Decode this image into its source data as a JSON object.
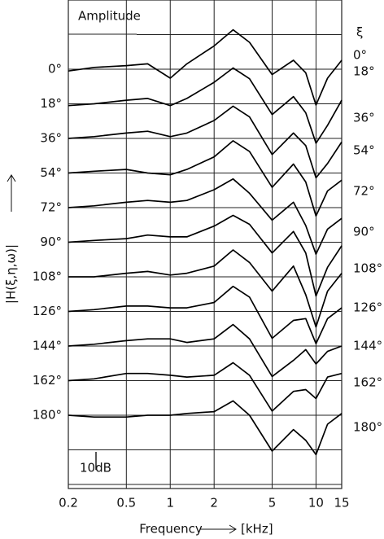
{
  "chart_data": {
    "type": "line",
    "title": "Amplitude",
    "x_label": "Frequency",
    "x_unit": "[kHz]",
    "y_label": "|H(ξ,η,ω)|",
    "series_label": "ξ",
    "x_log": true,
    "grid": true,
    "color": "#000000",
    "xlim": [
      0.2,
      15
    ],
    "xticks": [
      0.2,
      0.5,
      1,
      2,
      5,
      10,
      15
    ],
    "scale_bar": {
      "value": 10,
      "label": "10dB"
    },
    "x": [
      0.2,
      0.3,
      0.5,
      0.7,
      1,
      1.3,
      2,
      2.7,
      3.5,
      5,
      7,
      8.5,
      10,
      12,
      15
    ],
    "series": [
      {
        "name": "0°",
        "values": [
          -1,
          1,
          2,
          3,
          -5,
          3,
          13,
          22,
          15,
          -3,
          5,
          -2,
          -20,
          -5,
          5
        ]
      },
      {
        "name": "18°",
        "values": [
          -1,
          0,
          2,
          3,
          -1,
          3,
          12,
          20,
          14,
          -6,
          4,
          -5,
          -22,
          -12,
          2
        ]
      },
      {
        "name": "36°",
        "values": [
          0,
          1,
          3,
          4,
          1,
          3,
          10,
          18,
          12,
          -9,
          3,
          -4,
          -22,
          -14,
          -2
        ]
      },
      {
        "name": "54°",
        "values": [
          0,
          1,
          2,
          0,
          -1,
          2,
          9,
          18,
          12,
          -8,
          5,
          -5,
          -24,
          -10,
          -4
        ]
      },
      {
        "name": "72°",
        "values": [
          0,
          1,
          3,
          4,
          3,
          4,
          10,
          16,
          8,
          -7,
          3,
          -10,
          -26,
          -12,
          -6
        ]
      },
      {
        "name": "90°",
        "values": [
          0,
          1,
          2,
          4,
          3,
          3,
          9,
          15,
          10,
          -6,
          6,
          -6,
          -30,
          -14,
          -2
        ]
      },
      {
        "name": "108°",
        "values": [
          0,
          0,
          2,
          3,
          1,
          2,
          6,
          15,
          8,
          -8,
          6,
          -10,
          -28,
          -8,
          2
        ]
      },
      {
        "name": "126°",
        "values": [
          0,
          1,
          3,
          3,
          2,
          2,
          5,
          14,
          8,
          -15,
          -5,
          -4,
          -18,
          -4,
          2
        ]
      },
      {
        "name": "144°",
        "values": [
          0,
          1,
          3,
          4,
          4,
          2,
          4,
          12,
          4,
          -17,
          -8,
          -2,
          -10,
          -3,
          0
        ]
      },
      {
        "name": "162°",
        "values": [
          0,
          1,
          4,
          4,
          3,
          2,
          3,
          10,
          3,
          -17,
          -6,
          -5,
          -10,
          2,
          4
        ]
      },
      {
        "name": "180°",
        "values": [
          0,
          -1,
          -1,
          0,
          0,
          1,
          2,
          8,
          0,
          -20,
          -8,
          -14,
          -22,
          -5,
          1
        ]
      }
    ]
  }
}
